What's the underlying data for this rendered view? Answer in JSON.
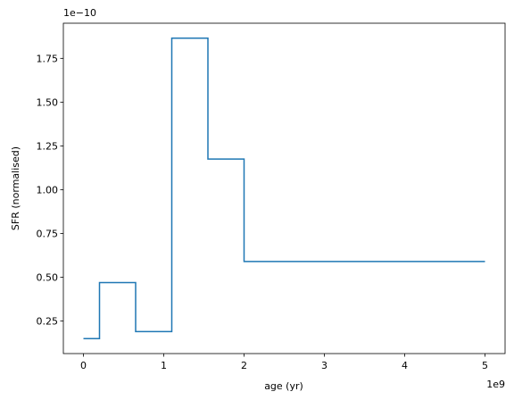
{
  "chart_data": {
    "type": "step",
    "x_label": "age (yr)",
    "y_label": "SFR (normalised)",
    "x_offset_label": "1e9",
    "y_offset_label": "1e−10",
    "series": [
      {
        "color": "#1f77b4",
        "step": "post",
        "x": [
          0,
          0.2,
          0.65,
          1.1,
          1.55,
          2.0,
          5.0
        ],
        "values": [
          0.15,
          0.47,
          0.19,
          1.865,
          1.175,
          0.59,
          0.59
        ]
      }
    ],
    "xlim": [
      -0.25,
      5.25
    ],
    "xticks": [
      0,
      1,
      2,
      3,
      4,
      5
    ],
    "ylim": [
      0.0645,
      1.9505
    ],
    "yticks": [
      0.25,
      {
        "value": 0.5,
        "label": "0.50"
      },
      0.75,
      {
        "value": 1.0,
        "label": "1.00"
      },
      1.25,
      {
        "value": 1.5,
        "label": "1.50"
      },
      1.75
    ]
  }
}
